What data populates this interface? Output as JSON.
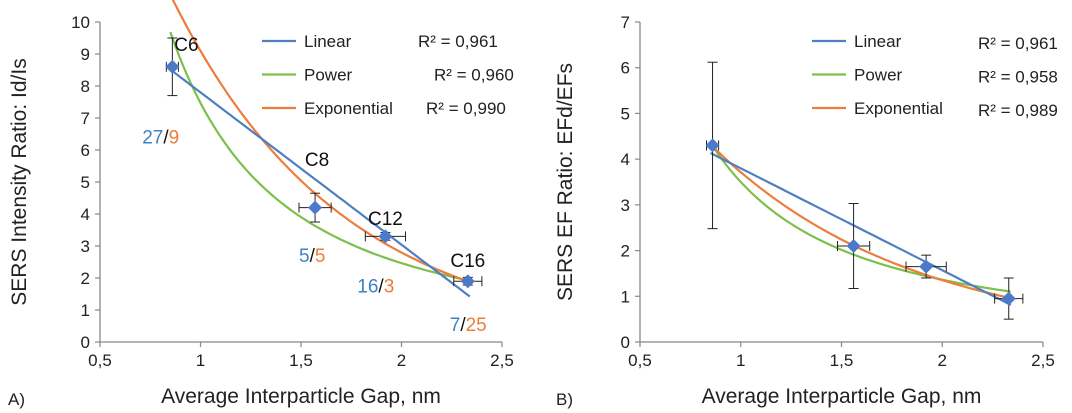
{
  "colors": {
    "linear": "#4f7fc0",
    "power": "#7cc04a",
    "exponential": "#ee7c3b",
    "marker": "#4a7ac8",
    "axis": "#888888",
    "ann_blue": "#3d83c4",
    "ann_orange": "#ee7c3b"
  },
  "chart_data": [
    {
      "type": "scatter",
      "panel_label": "A)",
      "xlabel": "Average Interparticle Gap, nm",
      "ylabel": "SERS Intensity  Ratio:  Id/Is",
      "xlim": [
        0.5,
        2.5
      ],
      "ylim": [
        0,
        10
      ],
      "xticks": [
        "0,5",
        "1",
        "1,5",
        "2",
        "2,5"
      ],
      "yticks": [
        "0",
        "1",
        "2",
        "3",
        "4",
        "5",
        "6",
        "7",
        "8",
        "9",
        "10"
      ],
      "grid": false,
      "legend": "top-right",
      "points": [
        {
          "x": 0.86,
          "y": 8.6,
          "xerr": 0.03,
          "yerr": 0.9
        },
        {
          "x": 1.57,
          "y": 4.2,
          "xerr": 0.08,
          "yerr": 0.45
        },
        {
          "x": 1.92,
          "y": 3.3,
          "xerr": 0.1,
          "yerr": 0.12
        },
        {
          "x": 2.33,
          "y": 1.9,
          "xerr": 0.07,
          "yerr": 0.12
        }
      ],
      "fits": {
        "linear": {
          "slope": -4.76,
          "intercept": 12.56
        },
        "power": {
          "a": 7.47,
          "b": -1.6
        },
        "exponential": {
          "a": 29.6,
          "b": -1.18
        }
      },
      "legend_entries": [
        {
          "key": "linear",
          "name": "Linear",
          "r2": "R² = 0,961"
        },
        {
          "key": "power",
          "name": "Power",
          "r2": "R² = 0,960"
        },
        {
          "key": "exponential",
          "name": "Exponential",
          "r2": "R² = 0,990"
        }
      ],
      "annotations": [
        {
          "text": "C6",
          "x": 0.93,
          "y": 9.1
        },
        {
          "text": "C8",
          "x": 1.58,
          "y": 5.5
        },
        {
          "text": "C12",
          "x": 1.92,
          "y": 3.65
        },
        {
          "text": "C16",
          "x": 2.33,
          "y": 2.35
        }
      ],
      "fractions": [
        {
          "a": "27",
          "b": "9",
          "x": 0.71,
          "y": 6.2
        },
        {
          "a": "5",
          "b": "5",
          "x": 1.49,
          "y": 2.5
        },
        {
          "a": "16",
          "b": "3",
          "x": 1.78,
          "y": 1.55
        },
        {
          "a": "7",
          "b": "25",
          "x": 2.24,
          "y": 0.35
        }
      ]
    },
    {
      "type": "scatter",
      "panel_label": "B)",
      "xlabel": "Average Interparticle Gap, nm",
      "ylabel": "SERS EF  Ratio: EFd/EFs",
      "xlim": [
        0.5,
        2.5
      ],
      "ylim": [
        0,
        7
      ],
      "xticks": [
        "0,5",
        "1",
        "1,5",
        "2",
        "2,5"
      ],
      "yticks": [
        "0",
        "1",
        "2",
        "3",
        "4",
        "5",
        "6",
        "7"
      ],
      "grid": false,
      "legend": "top-right",
      "points": [
        {
          "x": 0.86,
          "y": 4.3,
          "xerr": 0.03,
          "yerr": 1.82
        },
        {
          "x": 1.56,
          "y": 2.1,
          "xerr": 0.08,
          "yerr": 0.93
        },
        {
          "x": 1.92,
          "y": 1.65,
          "xerr": 0.1,
          "yerr": 0.25
        },
        {
          "x": 2.33,
          "y": 0.95,
          "xerr": 0.07,
          "yerr": 0.45
        }
      ],
      "fits": {
        "linear": {
          "slope": -2.23,
          "intercept": 6.03
        },
        "power": {
          "a": 3.5,
          "b": -1.36
        },
        "exponential": {
          "a": 10.2,
          "b": -1.01
        }
      },
      "legend_entries": [
        {
          "key": "linear",
          "name": "Linear",
          "r2": "R² = 0,961"
        },
        {
          "key": "power",
          "name": "Power",
          "r2": "R² = 0,958"
        },
        {
          "key": "exponential",
          "name": "Exponential",
          "r2": "R² = 0,989"
        }
      ],
      "annotations": [],
      "fractions": []
    }
  ]
}
